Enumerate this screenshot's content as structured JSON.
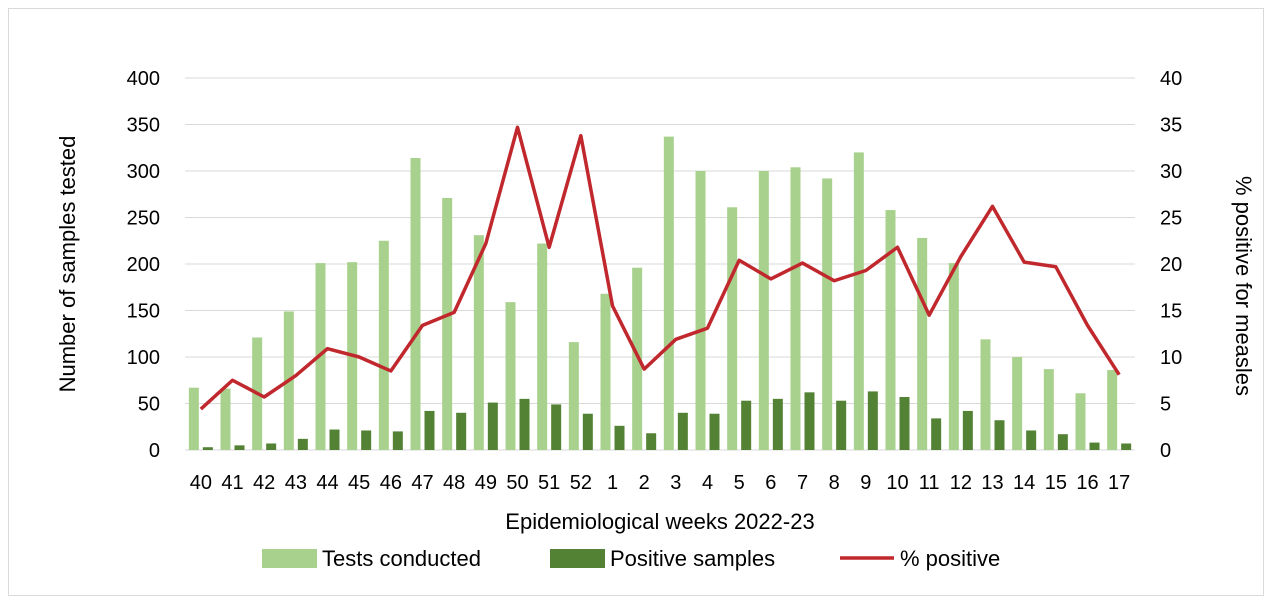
{
  "chart_data": {
    "type": "bar",
    "categories": [
      "40",
      "41",
      "42",
      "43",
      "44",
      "45",
      "46",
      "47",
      "48",
      "49",
      "50",
      "51",
      "52",
      "1",
      "2",
      "3",
      "4",
      "5",
      "6",
      "7",
      "8",
      "9",
      "10",
      "11",
      "12",
      "13",
      "14",
      "15",
      "16",
      "17"
    ],
    "xlabel": "Epidemiological weeks 2022-23",
    "ylabel": "Number of samples tested",
    "y2label": "% positive for measles",
    "ylim": [
      0,
      400
    ],
    "y2lim": [
      0,
      40
    ],
    "yticks": [
      0,
      50,
      100,
      150,
      200,
      250,
      300,
      350,
      400
    ],
    "y2ticks": [
      0,
      5,
      10,
      15,
      20,
      25,
      30,
      35,
      40
    ],
    "grid": true,
    "legend_position": "bottom",
    "series": [
      {
        "name": "Tests conducted",
        "kind": "bar",
        "axis": "left",
        "color": "#a9d18e",
        "values": [
          67,
          66,
          121,
          149,
          201,
          202,
          225,
          314,
          271,
          231,
          159,
          222,
          116,
          168,
          196,
          337,
          300,
          261,
          300,
          304,
          292,
          320,
          258,
          228,
          201,
          119,
          100,
          87,
          61,
          86
        ]
      },
      {
        "name": "Positive samples",
        "kind": "bar",
        "axis": "left",
        "color": "#548235",
        "values": [
          3,
          5,
          7,
          12,
          22,
          21,
          20,
          42,
          40,
          51,
          55,
          49,
          39,
          26,
          18,
          40,
          39,
          53,
          55,
          62,
          53,
          63,
          57,
          34,
          42,
          32,
          21,
          17,
          8,
          7
        ]
      },
      {
        "name": "% positive",
        "kind": "line",
        "axis": "right",
        "color": "#c0282d",
        "values": [
          4.4,
          7.5,
          5.7,
          8.0,
          10.9,
          10.0,
          8.5,
          13.4,
          14.8,
          22.2,
          34.7,
          21.8,
          33.8,
          15.5,
          8.7,
          11.9,
          13.1,
          20.4,
          18.4,
          20.1,
          18.2,
          19.3,
          21.8,
          14.5,
          20.8,
          26.2,
          20.2,
          19.7,
          13.4,
          8.1
        ]
      }
    ]
  }
}
